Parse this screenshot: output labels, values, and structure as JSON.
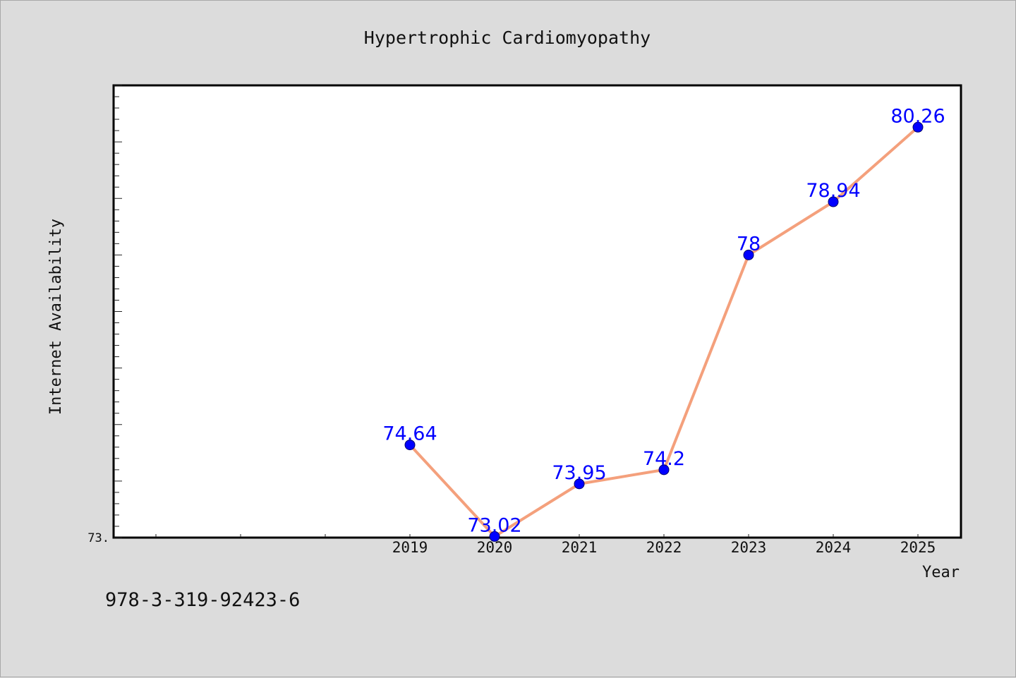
{
  "chart_data": {
    "type": "line",
    "title": "Hypertrophic Cardiomyopathy",
    "xlabel": "Year",
    "ylabel": "Internet Availability",
    "categories": [
      "2019",
      "2020",
      "2021",
      "2022",
      "2023",
      "2024",
      "2025"
    ],
    "series": [
      {
        "values": [
          74.64,
          73.02,
          73.95,
          74.2,
          78,
          78.94,
          80.26
        ],
        "labels": [
          "74.64",
          "73.02",
          "73.95",
          "74.2",
          "78",
          "78.94",
          "80.26"
        ]
      }
    ],
    "y_tick_label": "73.",
    "ylim": [
      73,
      81
    ],
    "grid": false,
    "colors": {
      "line": "#f4a07c",
      "marker": "#0000ff",
      "data_label": "#0000ff"
    }
  },
  "footer": {
    "code": "978-3-319-92423-6"
  }
}
